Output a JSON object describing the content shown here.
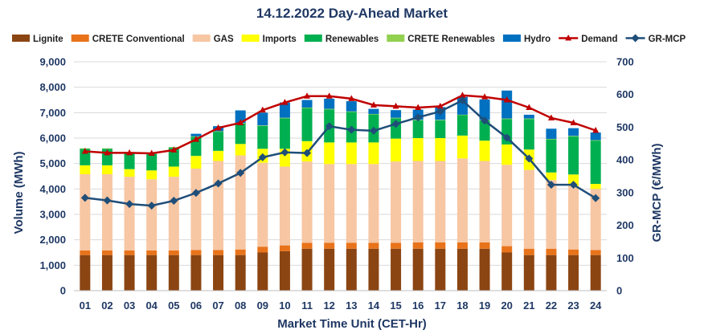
{
  "chart_data": {
    "type": "bar",
    "title": "14.12.2022  Day-Ahead Market",
    "xlabel": "Market Time Unit (CET-Hr)",
    "ylabel": "Volume (MWh)",
    "y2label": "GR-MCP (€/MWh)",
    "ylim": [
      0,
      9000
    ],
    "y2lim": [
      0,
      700
    ],
    "yticks": [
      "0",
      "1,000",
      "2,000",
      "3,000",
      "4,000",
      "5,000",
      "6,000",
      "7,000",
      "8,000",
      "9,000"
    ],
    "y2ticks": [
      "0",
      "100",
      "200",
      "300",
      "400",
      "500",
      "600",
      "700"
    ],
    "categories": [
      "01",
      "02",
      "03",
      "04",
      "05",
      "06",
      "07",
      "08",
      "09",
      "10",
      "11",
      "12",
      "13",
      "14",
      "15",
      "16",
      "17",
      "18",
      "19",
      "20",
      "21",
      "22",
      "23",
      "24"
    ],
    "stacked_series": [
      {
        "name": "Lignite",
        "color": "#8b4513",
        "values": [
          1400,
          1400,
          1400,
          1400,
          1400,
          1400,
          1400,
          1400,
          1500,
          1550,
          1650,
          1650,
          1650,
          1650,
          1650,
          1650,
          1650,
          1650,
          1650,
          1500,
          1400,
          1400,
          1400,
          1400
        ]
      },
      {
        "name": "CRETE Conventional",
        "color": "#e8731a",
        "values": [
          180,
          180,
          180,
          180,
          180,
          200,
          200,
          220,
          230,
          230,
          230,
          230,
          230,
          230,
          230,
          250,
          250,
          250,
          250,
          250,
          250,
          250,
          220,
          200
        ]
      },
      {
        "name": "GAS",
        "color": "#f7c6a3",
        "values": [
          3000,
          3000,
          2900,
          2800,
          2900,
          3200,
          3500,
          3700,
          3300,
          3100,
          3200,
          3100,
          3100,
          3100,
          3200,
          3200,
          3200,
          3300,
          3200,
          3200,
          3100,
          2700,
          2500,
          2400
        ]
      },
      {
        "name": "Imports",
        "color": "#ffff00",
        "values": [
          350,
          350,
          300,
          350,
          400,
          500,
          400,
          450,
          550,
          700,
          800,
          850,
          850,
          850,
          900,
          900,
          900,
          900,
          800,
          800,
          800,
          300,
          450,
          200
        ]
      },
      {
        "name": "Renewables",
        "color": "#00b050",
        "values": [
          650,
          650,
          650,
          650,
          750,
          750,
          750,
          800,
          900,
          1200,
          1300,
          1300,
          1200,
          1100,
          800,
          700,
          700,
          800,
          800,
          1000,
          1200,
          1300,
          1500,
          1700
        ]
      },
      {
        "name": "CRETE Renewables",
        "color": "#92d050",
        "values": [
          20,
          20,
          20,
          20,
          20,
          20,
          20,
          20,
          20,
          20,
          20,
          20,
          20,
          20,
          20,
          20,
          20,
          20,
          20,
          20,
          20,
          20,
          20,
          20
        ]
      },
      {
        "name": "Hydro",
        "color": "#0070c0",
        "values": [
          0,
          0,
          0,
          0,
          0,
          100,
          200,
          500,
          500,
          600,
          300,
          400,
          400,
          200,
          300,
          400,
          500,
          700,
          800,
          1100,
          150,
          400,
          300,
          300
        ]
      }
    ],
    "line_series": [
      {
        "name": "Demand",
        "color": "#c00000",
        "axis": "left",
        "values": [
          5480,
          5420,
          5420,
          5400,
          5530,
          5950,
          6400,
          6600,
          7100,
          7400,
          7650,
          7650,
          7550,
          7300,
          7250,
          7200,
          7250,
          7680,
          7620,
          7500,
          7200,
          6790,
          6600,
          6300
        ]
      },
      {
        "name": "GR-MCP",
        "color": "#1f4e79",
        "axis": "right",
        "values": [
          284,
          276,
          265,
          260,
          275,
          299,
          328,
          360,
          408,
          423,
          421,
          503,
          492,
          489,
          510,
          530,
          548,
          582,
          520,
          468,
          404,
          324,
          324,
          283
        ]
      }
    ],
    "legend": [
      "Lignite",
      "CRETE Conventional",
      "GAS",
      "Imports",
      "Renewables",
      "CRETE Renewables",
      "Hydro",
      "Demand",
      "GR-MCP"
    ],
    "legend_position": "top"
  }
}
